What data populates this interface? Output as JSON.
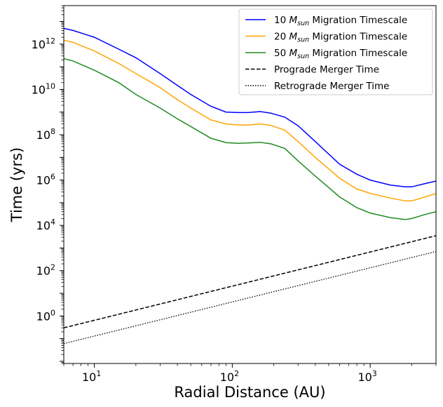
{
  "chart_data": {
    "type": "line",
    "xlabel": "Radial Distance (AU)",
    "ylabel": "Time (yrs)",
    "xscale": "log",
    "yscale": "log",
    "xlim": [
      6,
      3000
    ],
    "ylim": [
      0.008,
      50000000000000.0
    ],
    "xticks": [
      {
        "value": 10,
        "base": "10",
        "exp": "1"
      },
      {
        "value": 100,
        "base": "10",
        "exp": "2"
      },
      {
        "value": 1000,
        "base": "10",
        "exp": "3"
      }
    ],
    "yticks": [
      {
        "value": 1,
        "base": "10",
        "exp": "0"
      },
      {
        "value": 100,
        "base": "10",
        "exp": "2"
      },
      {
        "value": 10000,
        "base": "10",
        "exp": "4"
      },
      {
        "value": 1000000,
        "base": "10",
        "exp": "6"
      },
      {
        "value": 100000000,
        "base": "10",
        "exp": "8"
      },
      {
        "value": 10000000000,
        "base": "10",
        "exp": "10"
      },
      {
        "value": 1000000000000,
        "base": "10",
        "exp": "12"
      }
    ],
    "grid": false,
    "legend_position": "top-right",
    "series": [
      {
        "key": "m10",
        "legend_num": "10",
        "legend_sym": "M",
        "legend_sub": "sun",
        "legend_rest": "Migration Timescale",
        "color": "#0000ff",
        "style": "solid",
        "x": [
          6,
          7,
          10,
          15,
          20,
          30,
          40,
          50,
          70,
          90,
          110,
          130,
          160,
          190,
          240,
          300,
          400,
          600,
          800,
          1000,
          1400,
          1800,
          2000,
          2500,
          3000
        ],
        "y": [
          5000000000000.0,
          4000000000000.0,
          2000000000000.0,
          600000000000.0,
          250000000000.0,
          50000000000.0,
          15000000000.0,
          6000000000.0,
          1800000000.0,
          1000000000.0,
          950000000.0,
          950000000.0,
          1050000000.0,
          900000000.0,
          600000000.0,
          250000000.0,
          50000000.0,
          5000000.0,
          1800000.0,
          1000000.0,
          600000.0,
          500000.0,
          500000.0,
          700000.0,
          900000.0
        ]
      },
      {
        "key": "m20",
        "legend_num": "20",
        "legend_sym": "M",
        "legend_sub": "sun",
        "legend_rest": "Migration Timescale",
        "color": "#ffa500",
        "style": "solid",
        "x": [
          6,
          7,
          10,
          15,
          20,
          30,
          40,
          50,
          70,
          90,
          110,
          130,
          160,
          190,
          240,
          300,
          400,
          600,
          800,
          1000,
          1400,
          1800,
          2000,
          2500,
          3000
        ],
        "y": [
          1500000000000.0,
          1200000000000.0,
          500000000000.0,
          140000000000.0,
          50000000000.0,
          12000000000.0,
          3500000000.0,
          1500000000.0,
          450000000.0,
          300000000.0,
          270000000.0,
          270000000.0,
          300000000.0,
          260000000.0,
          160000000.0,
          50000000.0,
          10000000.0,
          1200000.0,
          400000.0,
          260000.0,
          160000.0,
          120000.0,
          120000.0,
          180000.0,
          250000.0
        ]
      },
      {
        "key": "m50",
        "legend_num": "50",
        "legend_sym": "M",
        "legend_sub": "sun",
        "legend_rest": "Migration Timescale",
        "color": "#228b22",
        "style": "solid",
        "x": [
          6,
          7,
          10,
          15,
          20,
          30,
          40,
          50,
          70,
          90,
          110,
          130,
          160,
          190,
          240,
          300,
          400,
          600,
          800,
          1000,
          1400,
          1800,
          2000,
          2500,
          3000
        ],
        "y": [
          230000000000.0,
          180000000000.0,
          70000000000.0,
          20000000000.0,
          6000000000.0,
          1500000000.0,
          500000000.0,
          230000000.0,
          70000000.0,
          45000000.0,
          42000000.0,
          43000000.0,
          46000000.0,
          40000000.0,
          25000000.0,
          7000000.0,
          1500000.0,
          180000.0,
          60000.0,
          35000.0,
          22000.0,
          18000.0,
          20000.0,
          30000.0,
          40000.0
        ]
      },
      {
        "key": "pro",
        "legend_text": "Prograde Merger Time",
        "color": "#000000",
        "style": "dashed",
        "x": [
          6,
          3000
        ],
        "y": [
          0.3,
          3500
        ]
      },
      {
        "key": "retro",
        "legend_text": "Retrograde Merger Time",
        "color": "#000000",
        "style": "dotted",
        "x": [
          6,
          3000
        ],
        "y": [
          0.06,
          700
        ]
      }
    ]
  }
}
